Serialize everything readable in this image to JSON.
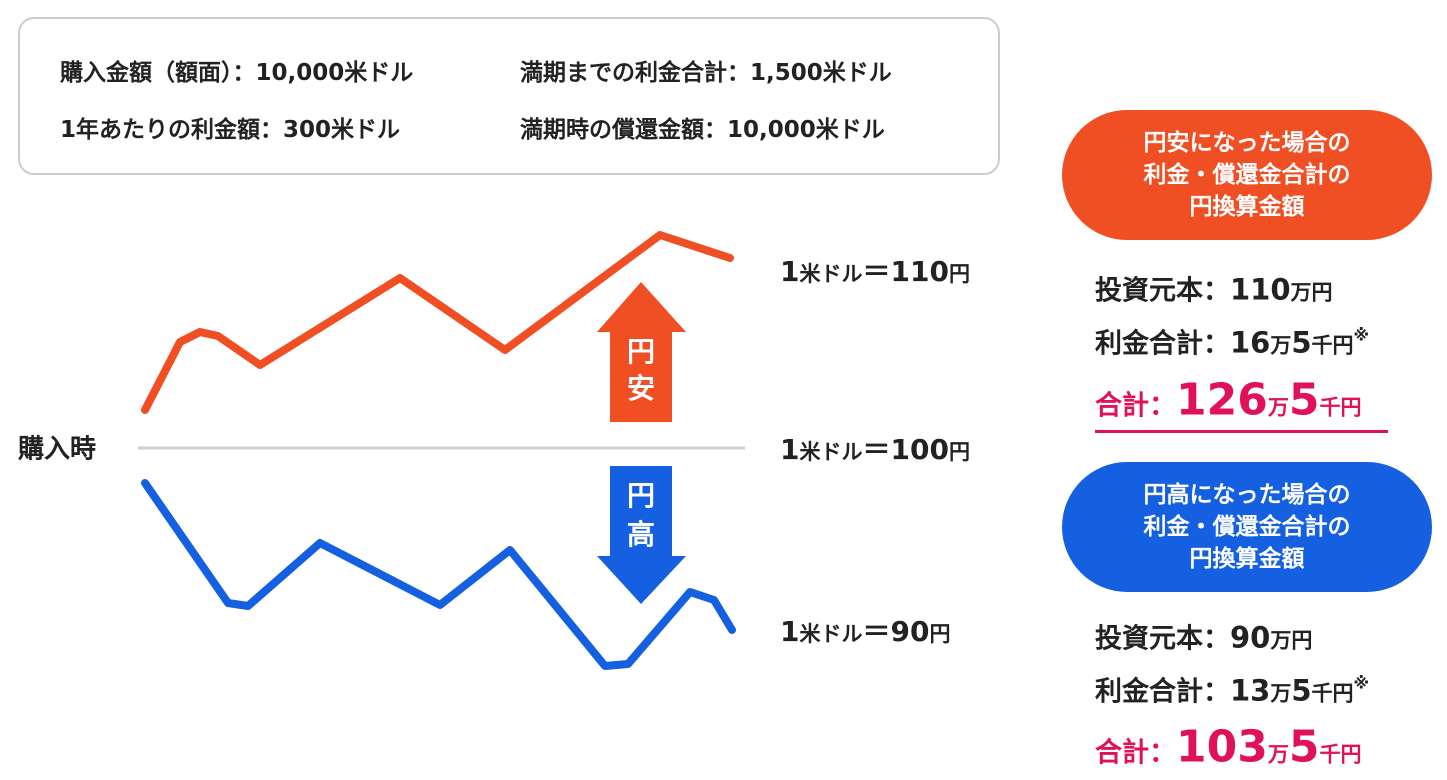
{
  "summary": [
    [
      "購入金額（額面）：10,000米ドル",
      "満期までの利金合計：1,500米ドル"
    ],
    [
      "1年あたりの利金額：300米ドル",
      "満期時の償還金額：10,000米ドル"
    ]
  ],
  "baseline_label": "購入時",
  "rates": [
    [
      "1",
      "米ドル",
      "＝110",
      "円"
    ],
    [
      "1",
      "米ドル",
      "＝100",
      "円"
    ],
    [
      "1",
      "米ドル",
      "＝90",
      "円"
    ]
  ],
  "arrows": {
    "up": [
      "円",
      "安"
    ],
    "down": [
      "円",
      "高"
    ]
  },
  "panels": [
    {
      "title": [
        "円安になった場合の",
        "利金・償還金合計の",
        "円換算金額"
      ],
      "principal": [
        "投資元本：",
        "110",
        "万円"
      ],
      "interest": [
        "利金合計：",
        "16",
        "万",
        "5",
        "千円",
        "※"
      ],
      "total": [
        "合計：",
        "126",
        "万",
        "5",
        "千円"
      ]
    },
    {
      "title": [
        "円高になった場合の",
        "利金・償還金合計の",
        "円換算金額"
      ],
      "principal": [
        "投資元本：",
        "90",
        "万円"
      ],
      "interest": [
        "利金合計：",
        "13",
        "万",
        "5",
        "千円",
        "※"
      ],
      "total": [
        "合計：",
        "103",
        "万",
        "5",
        "千円"
      ]
    }
  ]
}
